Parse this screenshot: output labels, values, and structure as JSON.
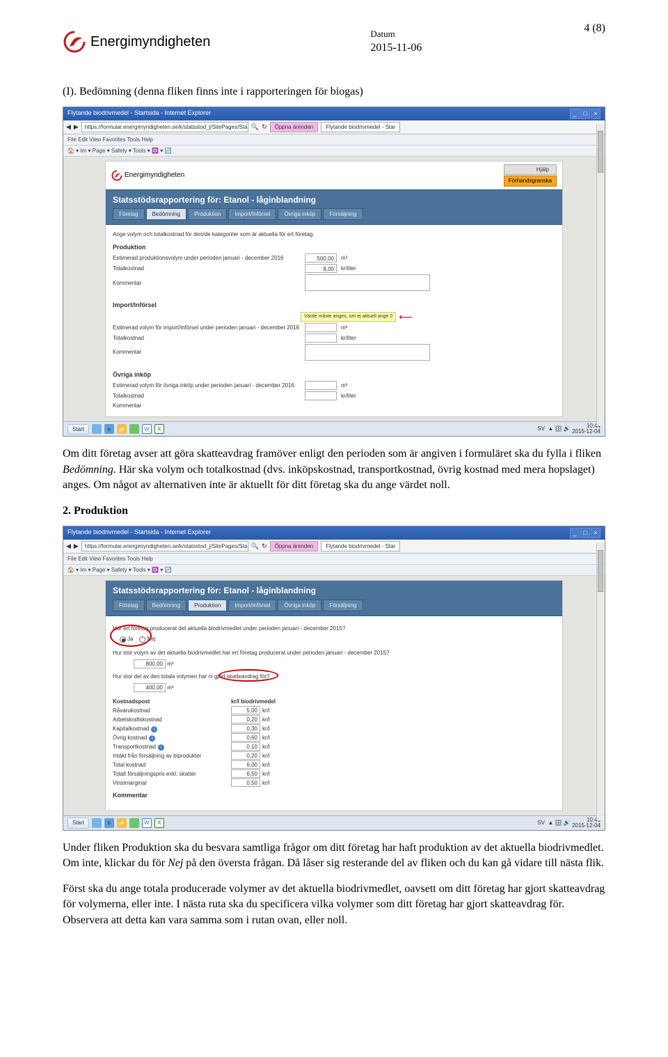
{
  "page_number": "4 (8)",
  "header": {
    "logo_text": "Energimyndigheten",
    "datum_label": "Datum",
    "datum_value": "2015-11-06"
  },
  "sec_i": {
    "heading": "(I). Bedömning (denna fliken finns inte i rapporteringen för biogas)",
    "para1a": "Om ditt företag avser att göra skatteavdrag framöver enligt den perioden som är angiven i formuläret ska du fylla i fliken ",
    "para1b_em": "Bedömning",
    "para1c": ". Här ska volym och totalkostnad (dvs. inköpskostnad, transportkostnad, övrig kostnad med mera hopslaget) anges. Om något av alternativen inte är aktuellt för ditt företag ska du ange värdet noll."
  },
  "sec_2": {
    "heading": "2. Produktion",
    "para_a": "Under fliken Produktion ska du besvara samtliga frågor om ditt företag har haft produktion av det aktuella biodrivmedlet. Om inte, klickar du för ",
    "para_b_em": "Nej",
    "para_c": " på den översta frågan. Då låser sig resterande del av fliken och du kan gå vidare till nästa flik.",
    "para2": "Först ska du ange totala producerade volymer av det aktuella biodrivmedlet, oavsett om ditt företag har gjort skatteavdrag för volymerna, eller inte. I nästa ruta ska du specificera vilka volymer som ditt företag har gjort skatteavdrag för. Observera att detta kan vara samma som i rutan ovan, eller noll."
  },
  "ss1": {
    "win_title": "Flytande biodrivmedel - Startsida - Internet Explorer",
    "url": "https://formular.energimyndigheten.se/k/statsstod_j/SitePages/Sta",
    "tab_oppna": "Öppna ärenden",
    "tab_fly": "Flytande biodrivmedel - Star",
    "menubar": "File   Edit   View   Favorites   Tools   Help",
    "toolbar": "🏠 ▾   Im ▾   Page ▾   Safety ▾   Tools ▾   🔯 ▾ 🔃",
    "help": "Hjälp",
    "preview": "Förhandsgranska",
    "banner_title": "Statsstödsrapportering för: Etanol - låginblandning",
    "tabs": [
      "Företag",
      "Bedömning",
      "Produktion",
      "Import/Införsel",
      "Övriga inköp",
      "Försäljning"
    ],
    "active_tab": 1,
    "intro": "Ange volym och totalkostnad för den/de kategori/er som är aktuella för ert företag.",
    "sections": {
      "prod": {
        "h": "Produktion",
        "r1_label": "Estimerad produktionsvolym under perioden januari - december 2016",
        "r1_val": "500,00",
        "r1_unit": "m³",
        "r2_label": "Totalkostnad",
        "r2_val": "8,00",
        "r2_unit": "kr/liter",
        "r3_label": "Kommentar"
      },
      "imp": {
        "h": "Import/Införsel",
        "warn": "Värde måste anges, om ej aktuell ange 0",
        "r1_label": "Estimerad volym för import/införsel under perioden januari - december 2016",
        "r1_unit": "m³",
        "r2_label": "Totalkostnad",
        "r2_unit": "kr/liter",
        "r3_label": "Kommentar"
      },
      "ovr": {
        "h": "Övriga inköp",
        "r1_label": "Estimerad volym för övriga inköp under perioden januari - december 2016",
        "r1_unit": "m³",
        "r2_label": "Totalkostnad",
        "r2_unit": "kr/liter",
        "r3_label": "Kommentar"
      }
    },
    "taskbar": {
      "start": "Start",
      "clock": "10:44\n2015-12-04",
      "lang": "SV"
    }
  },
  "ss2": {
    "win_title": "Flytande biodrivmedel - Startsida - Internet Explorer",
    "url": "https://formular.energimyndigheten.se/k/statsstod_j/SitePages/Sta",
    "tab_oppna": "Öppna ärenden",
    "tab_fly": "Flytande biodrivmedel - Star",
    "menubar": "File   Edit   View   Favorites   Tools   Help",
    "toolbar": "🏠 ▾   Im ▾   Page ▾   Safety ▾   Tools ▾   🔯 ▾ 🔃",
    "banner_title": "Statsstödsrapportering för: Etanol - låginblandning",
    "tabs": [
      "Företag",
      "Bedömning",
      "Produktion",
      "Import/Införsel",
      "Övriga inköp",
      "Försäljning"
    ],
    "active_tab": 2,
    "q1": "Har ert företag producerat det aktuella biodrivmedlet under perioden januari - december 2015?",
    "q1_ja": "Ja",
    "q1_nej": "Nej",
    "q2": "Hur stor volym av det aktuella biodrivmedlet har ert företag producerat under perioden januari - december 2015?",
    "q2_val": "800,00",
    "q2_unit": "m³",
    "q3a": "Hur stor del av den totala volymen har ni ",
    "q3b": "gjort skatteavdrag",
    "q3c": " för?",
    "q3_val": "400,00",
    "q3_unit": "m³",
    "cost_h1": "Kostnadspost",
    "cost_h2": "kr/l biodrivmedel",
    "rows": [
      {
        "label": "Råvarukostnad",
        "val": "5,00",
        "unit": "kr/l"
      },
      {
        "label": "Arbetskraftskostnad",
        "val": "0,20",
        "unit": "kr/l"
      },
      {
        "label": "Kapitalkostnad",
        "val": "0,30",
        "unit": "kr/l",
        "info": true
      },
      {
        "label": "Övrig kostnad",
        "val": "0,60",
        "unit": "kr/l",
        "info": true
      },
      {
        "label": "Transportkostnad",
        "val": "0,10",
        "unit": "kr/l",
        "info": true
      },
      {
        "label": "Intäkt från försäljning av biprodukter",
        "val": "0,20",
        "unit": "kr/l"
      },
      {
        "label": "Total kostnad",
        "val": "6,00",
        "unit": "kr/l"
      },
      {
        "label": "Totalt försäljningspris exkl. skatter",
        "val": "6,50",
        "unit": "kr/l"
      },
      {
        "label": "Vinstmarginal",
        "val": "0,50",
        "unit": "kr/l"
      }
    ],
    "kommentar": "Kommentar",
    "taskbar": {
      "start": "Start",
      "clock": "10:46\n2015-12-04",
      "lang": "SV"
    }
  }
}
